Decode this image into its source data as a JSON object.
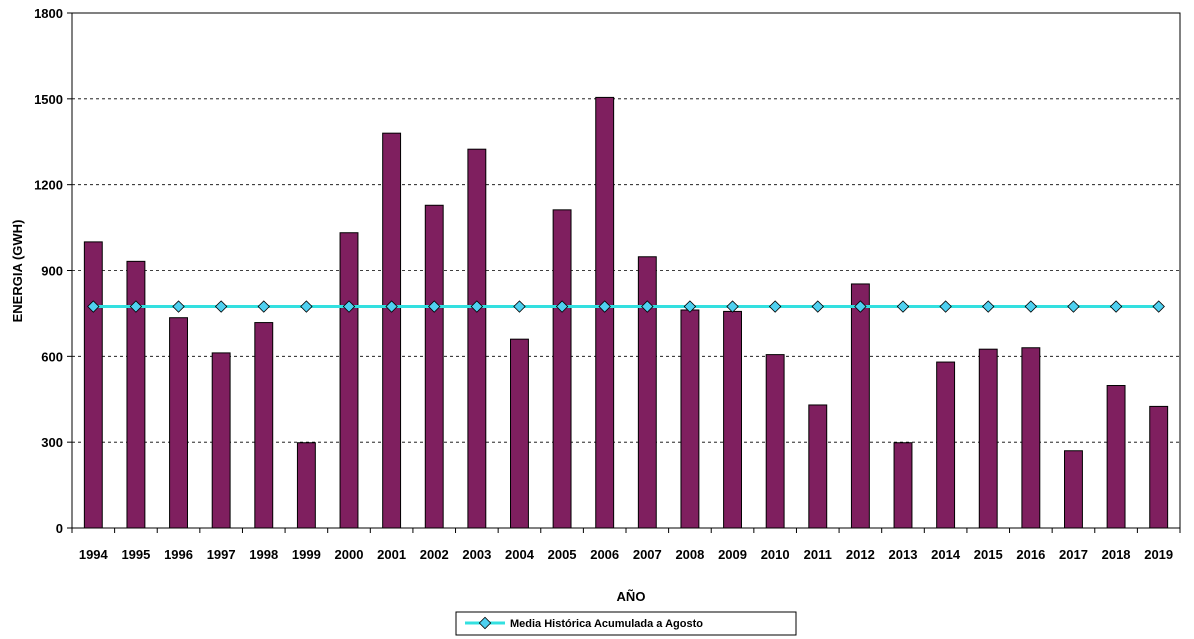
{
  "chart_data": {
    "type": "bar",
    "xlabel": "AÑO",
    "ylabel": "ENERGIA (GWH)",
    "ylim": [
      0,
      1800
    ],
    "yticks": [
      0,
      300,
      600,
      900,
      1200,
      1500,
      1800
    ],
    "grid": true,
    "legend_position": "bottom",
    "categories": [
      "1994",
      "1995",
      "1996",
      "1997",
      "1998",
      "1999",
      "2000",
      "2001",
      "2002",
      "2003",
      "2004",
      "2005",
      "2006",
      "2007",
      "2008",
      "2009",
      "2010",
      "2011",
      "2012",
      "2013",
      "2014",
      "2015",
      "2016",
      "2017",
      "2018",
      "2019"
    ],
    "bars": {
      "values": [
        1000,
        932,
        735,
        612,
        718,
        298,
        1032,
        1380,
        1128,
        1324,
        660,
        1112,
        1505,
        948,
        762,
        757,
        606,
        430,
        853,
        298,
        580,
        625,
        630,
        270,
        498,
        425
      ],
      "color": "#7F1F5F"
    },
    "series": [
      {
        "name": "Media Histórica Acumulada a Agosto",
        "type": "line",
        "values": [
          774,
          774,
          774,
          774,
          774,
          774,
          774,
          774,
          774,
          774,
          774,
          774,
          774,
          774,
          774,
          774,
          774,
          774,
          774,
          774,
          774,
          774,
          774,
          774,
          774,
          774
        ],
        "color": "#33E0E0",
        "marker_color": "#4FD0F0"
      }
    ]
  }
}
